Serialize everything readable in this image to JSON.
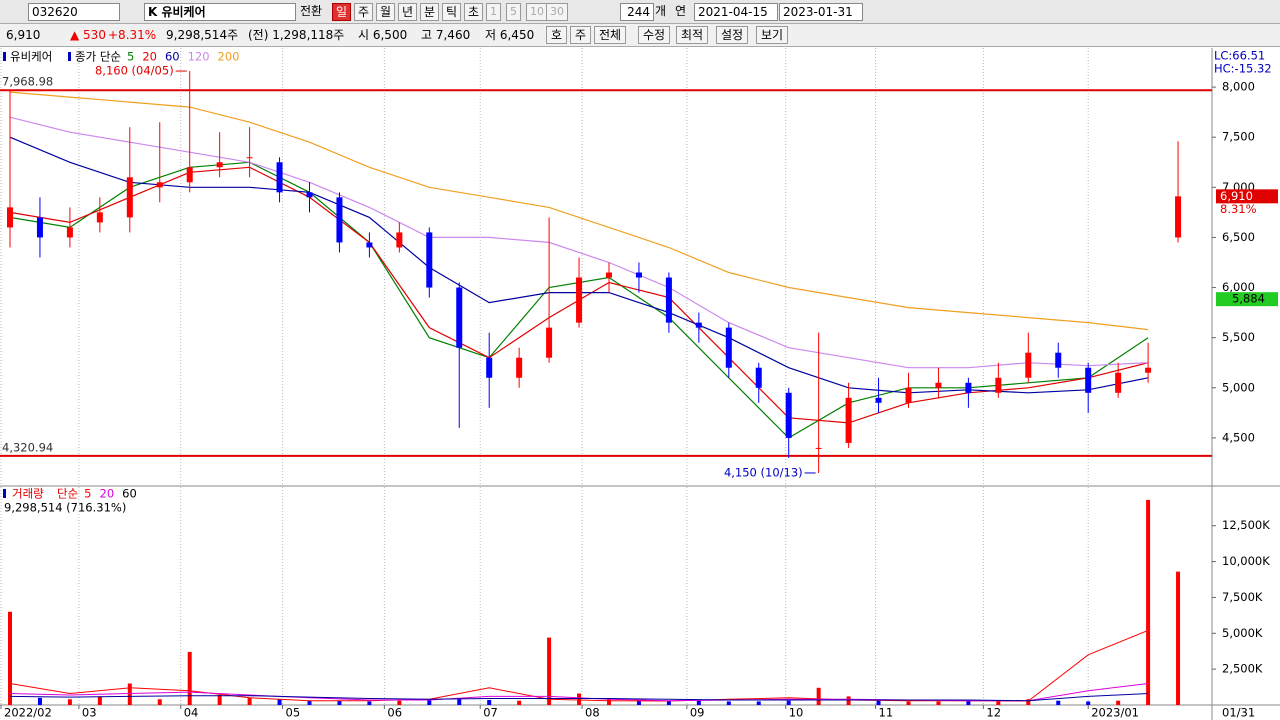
{
  "toolbar": {
    "code": "032620",
    "name": "K 유비케어",
    "switch": "전환",
    "periods": [
      "일",
      "주",
      "월",
      "년",
      "분",
      "틱",
      "초"
    ],
    "minutes": [
      "1",
      "5",
      "10",
      "30"
    ],
    "count": "244",
    "count_unit": "개",
    "link": "연",
    "date_from": "2021-04-15",
    "date_to": "2023-01-31"
  },
  "info": {
    "price": "6,910",
    "change": "▲ 530",
    "rate": "+8.31%",
    "volume": "9,298,514주",
    "prev_volume": "(전) 1,298,118주",
    "open": "시 6,500",
    "high": "고 7,460",
    "low": "저 6,450",
    "buttons": [
      "호",
      "주",
      "전체",
      "수정",
      "최적",
      "설정",
      "보기"
    ]
  },
  "chart_data": [
    {
      "type": "candlestick",
      "title": "유비케어",
      "ma_label": "종가 단순",
      "lc": "LC:66.51",
      "hc": "HC:-15.32",
      "open": [
        6600,
        6700,
        6500,
        6650,
        6700,
        7000,
        7050,
        7200,
        7300,
        7250,
        6950,
        6900,
        6450,
        6400,
        6550,
        6000,
        5300,
        5100,
        5300,
        5650,
        6100,
        6150,
        6100,
        5650,
        5600,
        5200,
        4950,
        4400,
        4450,
        4900,
        4850,
        5000,
        5050,
        4950,
        5100,
        5350,
        5200,
        4950,
        5150,
        6500
      ],
      "high": [
        7970,
        6900,
        6800,
        6900,
        7600,
        7650,
        8160,
        7550,
        7600,
        7300,
        7050,
        6950,
        6550,
        6650,
        6600,
        6050,
        5550,
        5400,
        6700,
        6300,
        6250,
        6250,
        6150,
        5750,
        5650,
        5250,
        5000,
        5550,
        5050,
        5100,
        5150,
        5200,
        5100,
        5250,
        5550,
        5450,
        5250,
        5250,
        5450,
        7460
      ],
      "low": [
        6400,
        6300,
        6400,
        6550,
        6550,
        6850,
        6950,
        7100,
        7100,
        6850,
        6750,
        6350,
        6300,
        6350,
        5900,
        4600,
        4800,
        5000,
        5250,
        5600,
        5950,
        5950,
        5550,
        5450,
        5100,
        4850,
        4300,
        4150,
        4400,
        4750,
        4800,
        4900,
        4800,
        4900,
        5050,
        5100,
        4750,
        4900,
        5050,
        6450
      ],
      "close": [
        6800,
        6500,
        6600,
        6750,
        7100,
        7050,
        7200,
        7250,
        7300,
        6950,
        6900,
        6450,
        6400,
        6550,
        6000,
        5400,
        5100,
        5300,
        5600,
        6100,
        6150,
        6100,
        5650,
        5600,
        5200,
        5000,
        4500,
        4400,
        4900,
        4850,
        5000,
        5050,
        4950,
        5100,
        5350,
        5200,
        4950,
        5150,
        5200,
        6910
      ],
      "up_color": "#ff0000",
      "down_color": "#0000ff",
      "ma_index": [
        0,
        2,
        4,
        6,
        8,
        10,
        12,
        14,
        16,
        18,
        20,
        22,
        24,
        26,
        28,
        30,
        32,
        34,
        36,
        38
      ],
      "series": [
        {
          "name": "5",
          "color": "#008000",
          "values": [
            6700,
            6600,
            7000,
            7200,
            7250,
            6950,
            6450,
            5500,
            5300,
            6000,
            6100,
            5700,
            5100,
            4500,
            4850,
            5000,
            5000,
            5050,
            5100,
            5500
          ]
        },
        {
          "name": "20",
          "color": "#e00000",
          "values": [
            6750,
            6650,
            6900,
            7150,
            7200,
            6900,
            6450,
            5600,
            5300,
            5700,
            6050,
            5900,
            5300,
            4700,
            4650,
            4850,
            4950,
            5000,
            5100,
            5250
          ]
        },
        {
          "name": "60",
          "color": "#0000a0",
          "values": [
            7500,
            7250,
            7050,
            7000,
            7000,
            6950,
            6700,
            6200,
            5850,
            5950,
            5950,
            5750,
            5500,
            5200,
            5000,
            4950,
            4980,
            4950,
            4980,
            5100
          ]
        },
        {
          "name": "120",
          "color": "#cc88ee",
          "values": [
            7700,
            7550,
            7450,
            7350,
            7250,
            7050,
            6800,
            6500,
            6500,
            6450,
            6250,
            6000,
            5650,
            5400,
            5300,
            5200,
            5200,
            5250,
            5220,
            5250
          ]
        },
        {
          "name": "200",
          "color": "#f0a020",
          "values": [
            7950,
            7900,
            7850,
            7800,
            7650,
            7450,
            7200,
            7000,
            6900,
            6800,
            6600,
            6400,
            6150,
            6000,
            5900,
            5800,
            5750,
            5700,
            5650,
            5580
          ]
        }
      ],
      "ylim": [
        4030,
        8390
      ],
      "yticks": [
        {
          "value": 4500,
          "label": "4,500"
        },
        {
          "value": 5000,
          "label": "5,000"
        },
        {
          "value": 5500,
          "label": "5,500"
        },
        {
          "value": 6000,
          "label": "6,000"
        },
        {
          "value": 6500,
          "label": "6,500"
        },
        {
          "value": 7000,
          "label": "7,000"
        },
        {
          "value": 7500,
          "label": "7,500"
        },
        {
          "value": 8000,
          "label": "8,000"
        }
      ],
      "hlines": [
        {
          "value": 7968.98,
          "label": "7,968.98"
        },
        {
          "value": 4320.94,
          "label": "4,320.94"
        }
      ],
      "annotations": [
        {
          "label": "8,160 (04/05)",
          "value": 8160,
          "x": 6
        },
        {
          "label": "4,150 (10/13)",
          "value": 4150,
          "x": 27
        }
      ],
      "last": {
        "value": 6910,
        "label": "6,910",
        "rate": "8.31%"
      },
      "marker": {
        "value": 5884,
        "label": "5,884"
      }
    },
    {
      "type": "bar",
      "title": "거래량",
      "ma_label": "단순",
      "summary": "9,298,514 (716.31%)",
      "values": [
        6500,
        500,
        400,
        600,
        1500,
        400,
        3700,
        700,
        500,
        400,
        300,
        300,
        250,
        300,
        350,
        400,
        350,
        300,
        4700,
        800,
        400,
        350,
        300,
        300,
        250,
        250,
        300,
        1200,
        600,
        300,
        250,
        250,
        300,
        250,
        400,
        300,
        250,
        300,
        14300,
        9299
      ],
      "series": [
        {
          "name": "5",
          "color": "#ff0000",
          "values": [
            1500,
            800,
            1200,
            1000,
            500,
            300,
            300,
            400,
            1200,
            400,
            300,
            280,
            400,
            500,
            350,
            300,
            300,
            280,
            3500,
            5200
          ]
        },
        {
          "name": "20",
          "color": "#dd00dd",
          "values": [
            800,
            700,
            800,
            900,
            700,
            500,
            350,
            350,
            600,
            600,
            400,
            300,
            350,
            400,
            400,
            350,
            300,
            300,
            1000,
            1500
          ]
        },
        {
          "name": "60",
          "color": "#0000a0",
          "values": [
            600,
            550,
            600,
            650,
            650,
            550,
            450,
            400,
            450,
            450,
            450,
            400,
            350,
            350,
            350,
            350,
            350,
            300,
            600,
            800
          ]
        }
      ],
      "ylim": [
        0,
        15200
      ],
      "yticks": [
        {
          "value": 2500,
          "label": "2,500K"
        },
        {
          "value": 5000,
          "label": "5,000K"
        },
        {
          "value": 7500,
          "label": "7,500K"
        },
        {
          "value": 10000,
          "label": "10,000K"
        },
        {
          "value": 12500,
          "label": "12,500K"
        }
      ],
      "xticks": [
        {
          "value": -0.3,
          "label": "2022/02"
        },
        {
          "value": 2.3,
          "label": "03"
        },
        {
          "value": 5.7,
          "label": "04"
        },
        {
          "value": 9.1,
          "label": "05"
        },
        {
          "value": 12.5,
          "label": "06"
        },
        {
          "value": 15.7,
          "label": "07"
        },
        {
          "value": 19.1,
          "label": "08"
        },
        {
          "value": 22.6,
          "label": "09"
        },
        {
          "value": 25.9,
          "label": "10"
        },
        {
          "value": 28.9,
          "label": "11"
        },
        {
          "value": 32.5,
          "label": "12"
        },
        {
          "value": 36,
          "label": "2023/01"
        }
      ],
      "last_date": "01/31"
    }
  ]
}
